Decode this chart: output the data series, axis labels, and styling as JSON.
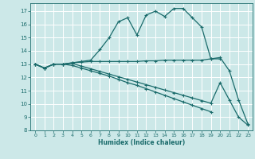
{
  "xlabel": "Humidex (Indice chaleur)",
  "bg_color": "#cce8e8",
  "grid_color": "#ffffff",
  "line_color": "#1a6b6b",
  "xlim": [
    -0.5,
    23.5
  ],
  "ylim": [
    8,
    17.6
  ],
  "yticks": [
    8,
    9,
    10,
    11,
    12,
    13,
    14,
    15,
    16,
    17
  ],
  "xticks": [
    0,
    1,
    2,
    3,
    4,
    5,
    6,
    7,
    8,
    9,
    10,
    11,
    12,
    13,
    14,
    15,
    16,
    17,
    18,
    19,
    20,
    21,
    22,
    23
  ],
  "curve1_x": [
    0,
    1,
    2,
    3,
    4,
    5,
    6,
    7,
    8,
    9,
    10,
    11,
    12,
    13,
    14,
    15,
    16,
    17,
    18,
    19,
    20,
    21,
    22,
    23
  ],
  "curve1_y": [
    13.0,
    12.7,
    13.0,
    13.0,
    13.1,
    13.2,
    13.3,
    14.1,
    15.0,
    16.2,
    16.5,
    15.2,
    16.7,
    17.0,
    16.6,
    17.2,
    17.2,
    16.5,
    15.8,
    13.4,
    13.5,
    12.5,
    10.3,
    8.5
  ],
  "curve2_x": [
    0,
    1,
    2,
    3,
    4,
    5,
    6,
    7,
    8,
    9,
    10,
    11,
    12,
    13,
    14,
    15,
    16,
    17,
    18,
    19,
    20
  ],
  "curve2_y": [
    13.0,
    12.7,
    13.0,
    13.0,
    13.1,
    13.15,
    13.2,
    13.2,
    13.2,
    13.2,
    13.2,
    13.2,
    13.25,
    13.25,
    13.3,
    13.3,
    13.3,
    13.3,
    13.3,
    13.4,
    13.4
  ],
  "curve3_x": [
    0,
    1,
    2,
    3,
    4,
    5,
    6,
    7,
    8,
    9,
    10,
    11,
    12,
    13,
    14,
    15,
    16,
    17,
    18,
    19,
    20,
    21,
    22,
    23
  ],
  "curve3_y": [
    13.0,
    12.7,
    13.0,
    13.0,
    12.9,
    12.7,
    12.5,
    12.3,
    12.1,
    11.85,
    11.6,
    11.4,
    11.15,
    10.9,
    10.65,
    10.4,
    10.15,
    9.9,
    9.65,
    9.4,
    null,
    null,
    null,
    null
  ],
  "curve4_x": [
    0,
    1,
    2,
    3,
    4,
    5,
    6,
    7,
    8,
    9,
    10,
    11,
    12,
    13,
    14,
    15,
    16,
    17,
    18,
    19,
    20,
    21,
    22,
    23
  ],
  "curve4_y": [
    13.0,
    12.7,
    13.0,
    13.0,
    13.05,
    12.85,
    12.65,
    12.45,
    12.25,
    12.05,
    11.85,
    11.65,
    11.45,
    11.25,
    11.05,
    10.85,
    10.65,
    10.45,
    10.25,
    10.05,
    11.6,
    10.3,
    9.0,
    8.4
  ]
}
